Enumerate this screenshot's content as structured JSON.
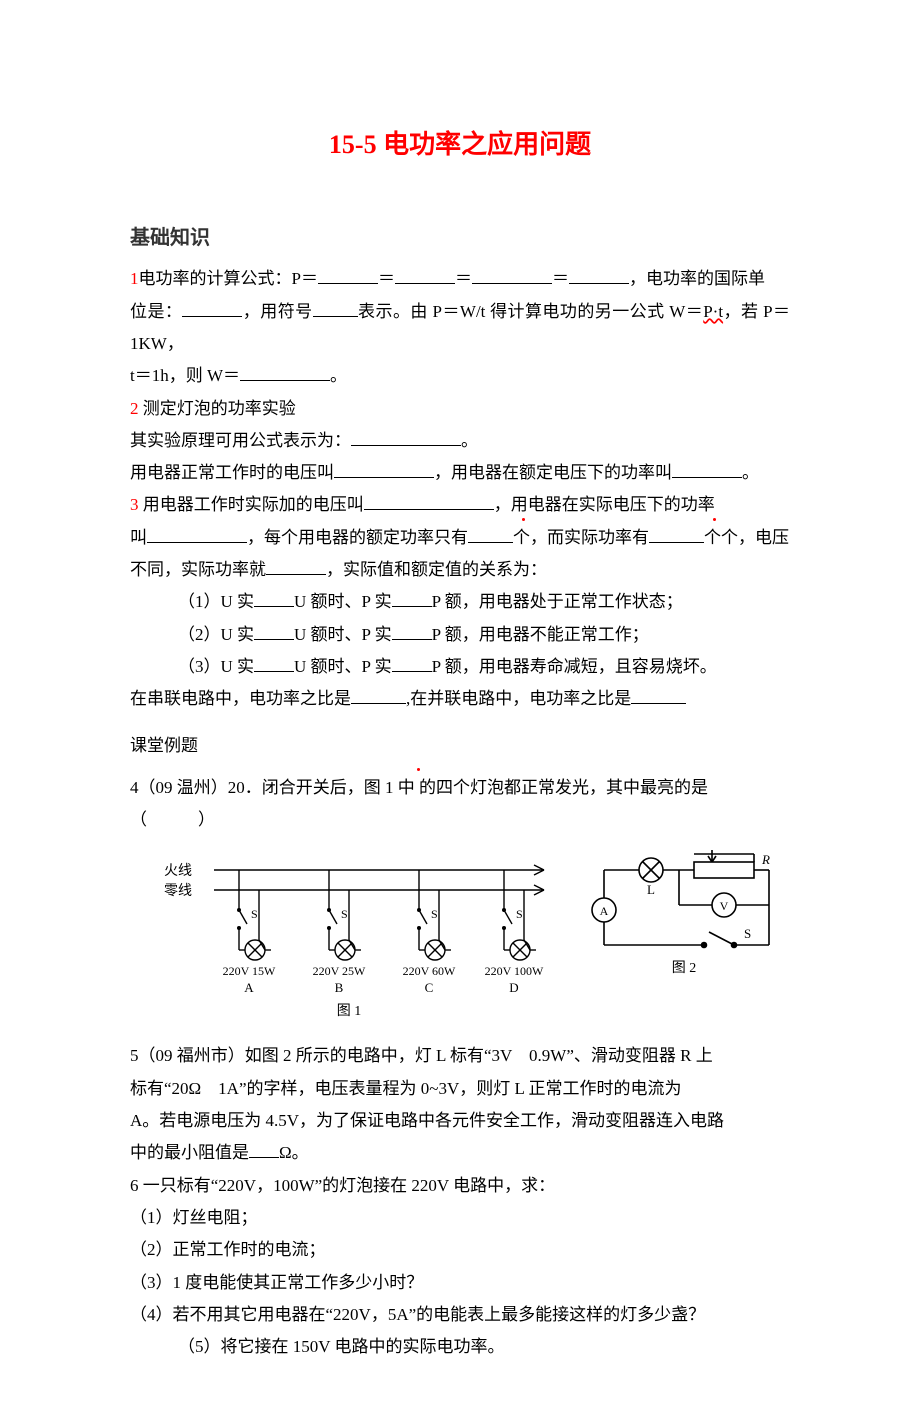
{
  "title": "15-5 电功率之应用问题",
  "heading_basic": "基础知识",
  "q1": {
    "a": "1电功率的计算公式：P＝",
    "b": "＝",
    "c": "＝",
    "d": "＝",
    "e": "，电功率的国际单",
    "f": "位是：",
    "g": "，用符号",
    "h": "表示。由 P＝W/t 得计算电功的另一公式 W＝",
    "pt": "P·t",
    "i": "，若 P＝1KW，",
    "j": "t＝1h，则 W＝",
    "k": "。"
  },
  "q2": {
    "a": "2 测定灯泡的功率实验",
    "b": " 其实验原理可用公式表示为：",
    "c": "。",
    "d": " 用电器正常工作时的电压叫",
    "e": "，用电器在额定电压下的功率叫",
    "f": "。"
  },
  "q3": {
    "a": "3 用电器工作时实际加的电压叫",
    "b": "，用电器在实际电压下的功率",
    "c": "叫",
    "d": "，每个用电器的额定功率只有",
    "one": "个",
    "e": "，而实际功率有",
    "f": "个，电压",
    "g": "不同，实际功率就",
    "h": "，实际值和额定值的关系为：",
    "r1a": "（1）U 实",
    "r1b": "U 额时、P 实",
    "r1c": "P 额，用电器处于正常工作状态；",
    "r2a": "（2）U 实",
    "r2b": "U 额时、P 实",
    "r2c": "P 额，用电器不能正常工作；",
    "r3a": "（3）U 实",
    "r3b": "U 额时、P 实",
    "r3c": "P 额，用电器寿命减短，且容易烧坏。",
    "s1": "在串联电路中，电功率之比是",
    "s2": ",在并联电路中，电功率之比是"
  },
  "heading_examples": "课堂例题",
  "q4": {
    "a": "4（09 温州）20．闭合开关后，图 1 中",
    "b": "的四个灯泡都正常发光，其中最亮的是",
    "c": "（　　　）"
  },
  "fig1": {
    "fire": "火线",
    "zero": "零线",
    "cap": "图 1",
    "s": "S",
    "lamps": [
      {
        "spec": "220V  15W",
        "letter": "A"
      },
      {
        "spec": "220V  25W",
        "letter": "B"
      },
      {
        "spec": "220V  60W",
        "letter": "C"
      },
      {
        "spec": "220V  100W",
        "letter": "D"
      }
    ]
  },
  "fig2": {
    "L": "L",
    "R": "R",
    "A": "A",
    "V": "V",
    "S": "S",
    "cap": "图 2"
  },
  "q5": {
    "a": "5（09 福州市）如图 2 所示的电路中，灯 L 标有“3V　0.9W”、滑动变阻器 R 上",
    "b": "标有“20Ω　1A”的字样，电压表量程为 0~3V，则灯 L 正常工作时的电流为",
    "c": "A。若电源电压为 4.5V，为了保证电路中各元件安全工作，滑动变阻器连入电路",
    "d": "中的最小阻值是",
    "e": "Ω。"
  },
  "q6": {
    "a": "6 一只标有“220V，100W”的灯泡接在 220V 电路中，求：",
    "b": "（1）灯丝电阻；",
    "c": "（2）正常工作时的电流；",
    "d": "（3）1 度电能使其正常工作多少小时？",
    "e": "（4）若不用其它用电器在“220V，5A”的电能表上最多能接这样的灯多少盏？",
    "f": "（5）将它接在 150V 电路中的实际电功率。"
  },
  "colors": {
    "title": "#ff0000",
    "text": "#000000",
    "accent": "#ff0000"
  }
}
